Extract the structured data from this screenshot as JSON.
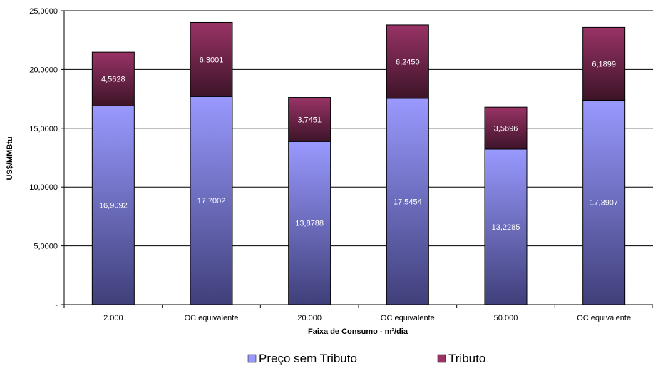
{
  "chart_data": {
    "type": "bar",
    "stacked": true,
    "categories": [
      "2.000",
      "OC equivalente",
      "20.000",
      "OC equivalente",
      "50.000",
      "OC equivalente"
    ],
    "series": [
      {
        "name": "Preço sem Tributo",
        "values": [
          16.9092,
          17.7002,
          13.8788,
          17.5454,
          13.2285,
          17.3907
        ],
        "labels": [
          "16,9092",
          "17,7002",
          "13,8788",
          "17,5454",
          "13,2285",
          "17,3907"
        ],
        "color_top": "#9999ff",
        "color_bottom": "#3f3f7a"
      },
      {
        "name": "Tributo",
        "values": [
          4.5628,
          6.3001,
          3.7451,
          6.245,
          3.5696,
          6.1899
        ],
        "labels": [
          "4,5628",
          "6,3001",
          "3,7451",
          "6,2450",
          "3,5696",
          "6,1899"
        ],
        "color_top": "#993366",
        "color_bottom": "#3d1428"
      }
    ],
    "xlabel": "Faixa de Consumo - m³/dia",
    "ylabel": "US$/MMBtu",
    "ylim": [
      0,
      25
    ],
    "yticks": [
      0,
      5,
      10,
      15,
      20,
      25
    ],
    "ytick_labels": [
      "-",
      "5,0000",
      "10,0000",
      "15,0000",
      "20,0000",
      "25,0000"
    ],
    "grid": true,
    "legend_position": "bottom"
  }
}
